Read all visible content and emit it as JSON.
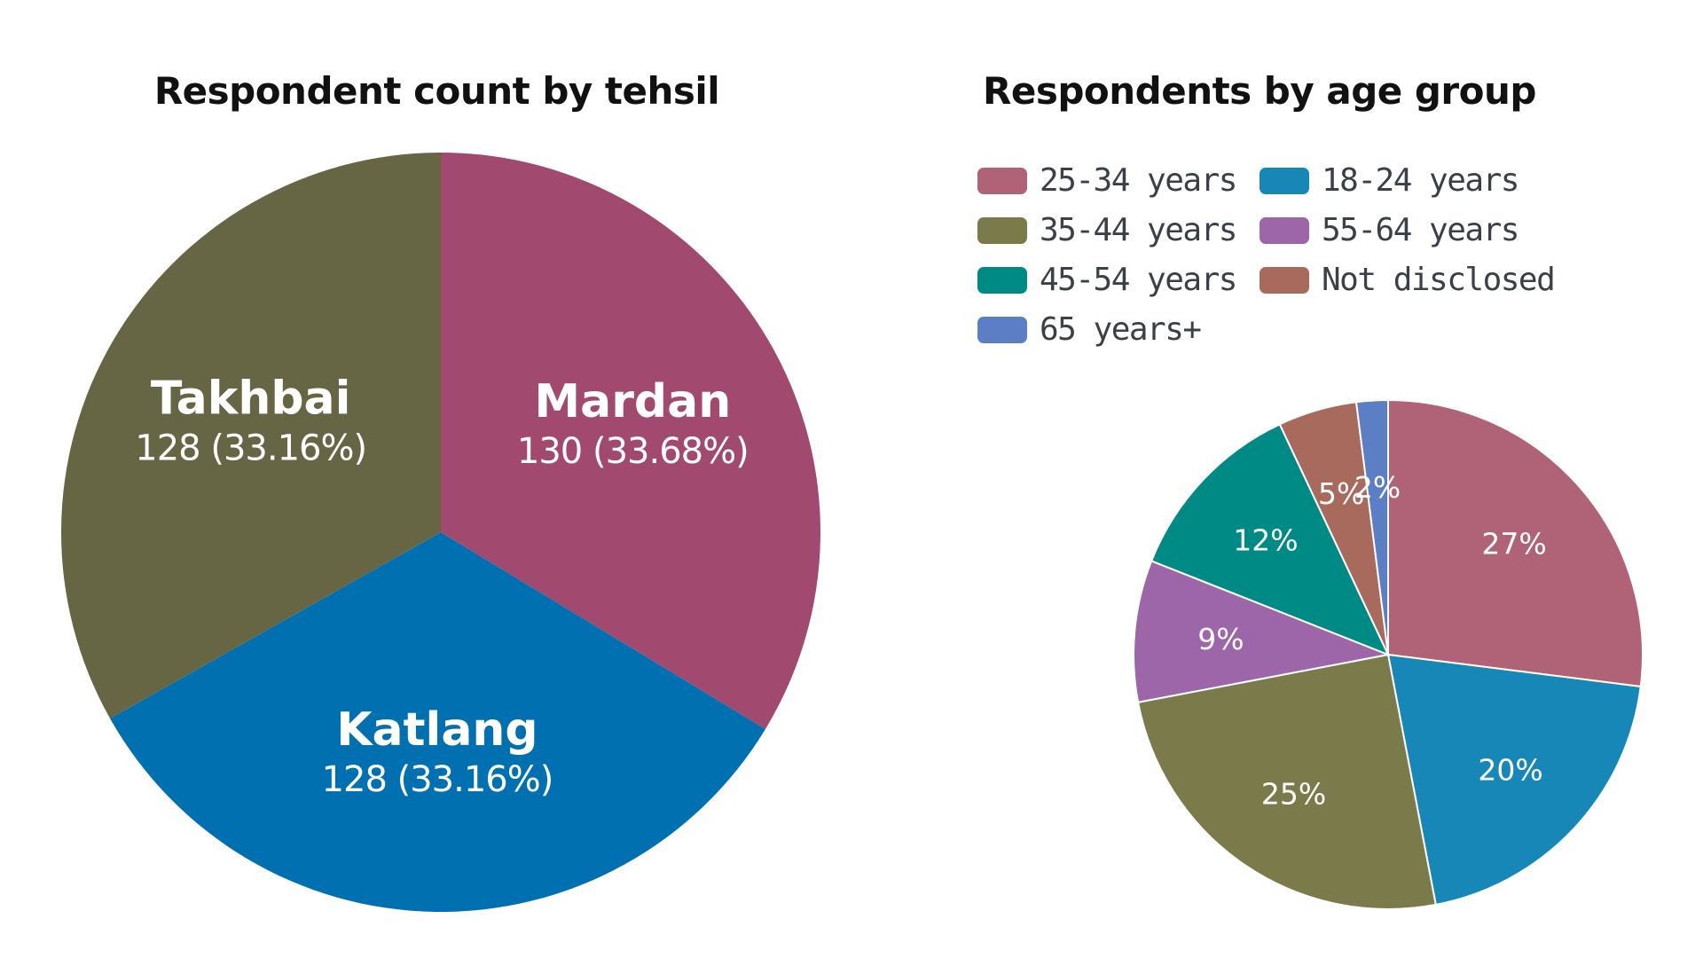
{
  "chart_data": [
    {
      "type": "pie",
      "title": "Respondent count by tehsil",
      "slices": [
        {
          "label": "Mardan",
          "value": 130,
          "display": "130 (33.68%)",
          "color": "#a24970"
        },
        {
          "label": "Katlang",
          "value": 128,
          "display": "128 (33.16%)",
          "color": "#0070b0"
        },
        {
          "label": "Takhbai",
          "value": 128,
          "display": "128 (33.16%)",
          "color": "#666644"
        }
      ],
      "start_angle_deg": 0,
      "direction": "clockwise"
    },
    {
      "type": "pie",
      "title": "Respondents by age group",
      "legend_position": "top",
      "slices": [
        {
          "label": "25-34 years",
          "value": 27,
          "display": "27%",
          "color": "#b06276"
        },
        {
          "label": "18-24 years",
          "value": 20,
          "display": "20%",
          "color": "#1787b8"
        },
        {
          "label": "35-44 years",
          "value": 25,
          "display": "25%",
          "color": "#7a7a4a"
        },
        {
          "label": "55-64 years",
          "value": 9,
          "display": "9%",
          "color": "#9c66a8"
        },
        {
          "label": "45-54 years",
          "value": 12,
          "display": "12%",
          "color": "#008a86"
        },
        {
          "label": "Not disclosed",
          "value": 5,
          "display": "5%",
          "color": "#a96a5e"
        },
        {
          "label": "65 years+",
          "value": 2,
          "display": "2%",
          "color": "#5c7ec4"
        }
      ],
      "legend_order": [
        "25-34 years",
        "18-24 years",
        "35-44 years",
        "55-64 years",
        "45-54 years",
        "Not disclosed",
        "65 years+"
      ],
      "start_angle_deg": 0,
      "direction": "clockwise"
    }
  ]
}
